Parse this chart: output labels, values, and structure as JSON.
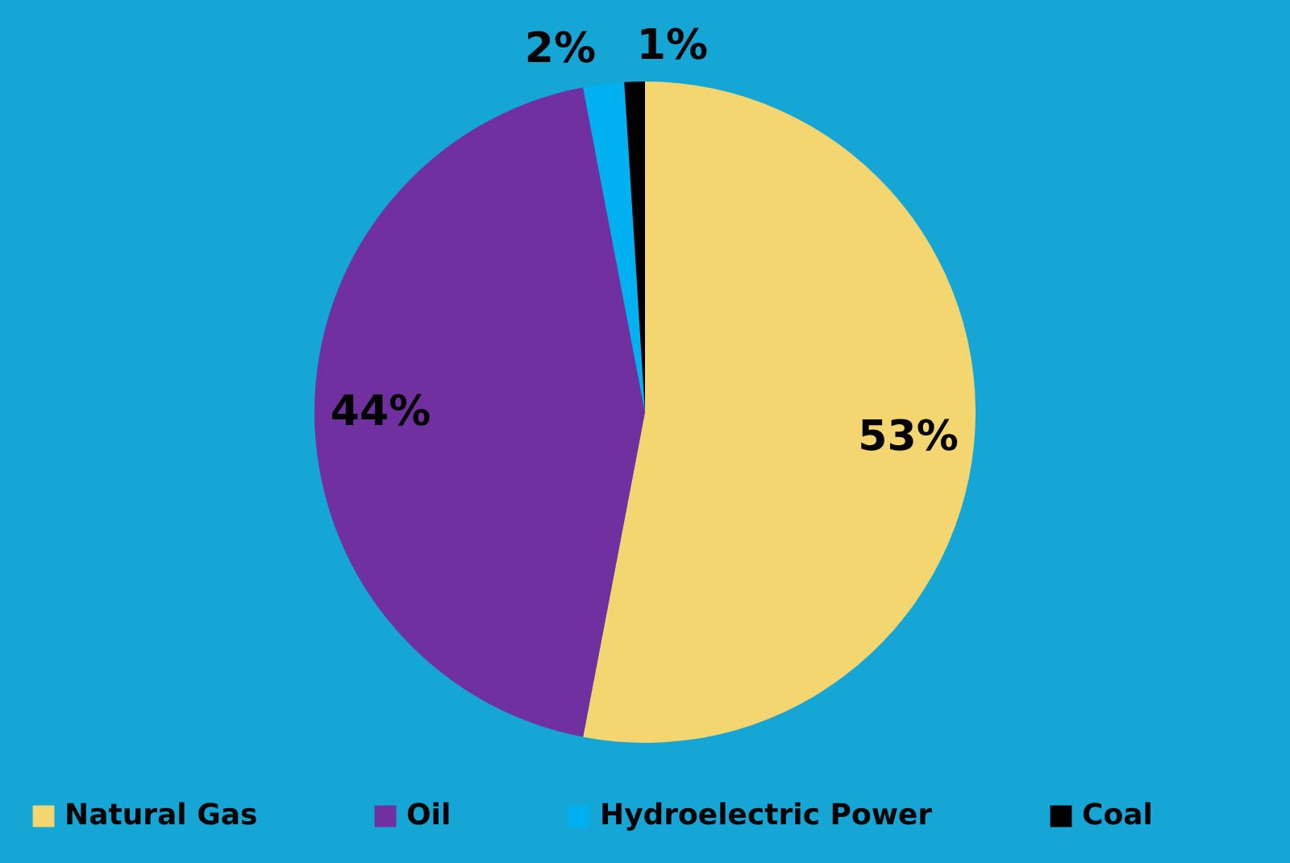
{
  "chart_data": {
    "type": "pie",
    "categories": [
      "Natural Gas",
      "Oil",
      "Hydroelectric Power",
      "Coal"
    ],
    "values": [
      53,
      44,
      2,
      1
    ],
    "colors": [
      "#f3d66f",
      "#7030a0",
      "#00b0f0",
      "#000000"
    ],
    "value_labels": [
      "53%",
      "44%",
      "2%",
      "1%"
    ],
    "legend": "bottom"
  }
}
